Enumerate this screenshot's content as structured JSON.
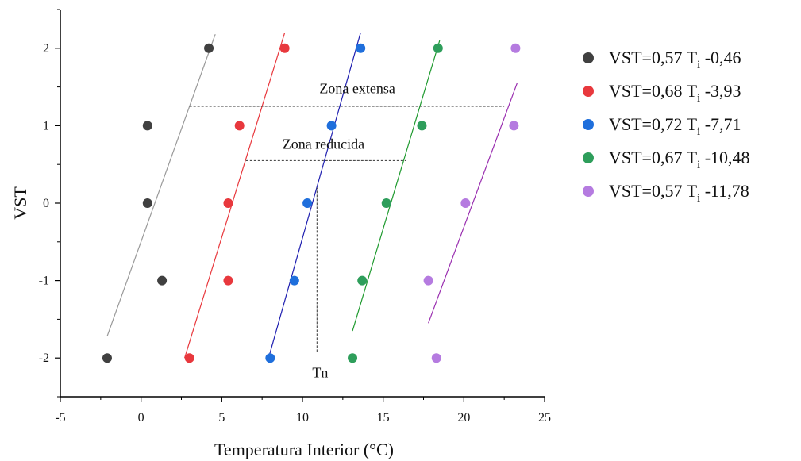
{
  "chart_data": {
    "type": "scatter",
    "xlabel": "Temperatura Interior (°C)",
    "ylabel": "VST",
    "xlim": [
      -5,
      25
    ],
    "ylim": [
      -2.5,
      2.5
    ],
    "xticks": [
      -5,
      0,
      5,
      10,
      15,
      20,
      25
    ],
    "yticks": [
      -2,
      -1,
      0,
      1,
      2
    ],
    "grid": false,
    "legend_position": "right",
    "series": [
      {
        "name": "VST=0,57 Ti -0,46",
        "legend_main": "VST=0,57 T",
        "legend_sub": "i",
        "legend_tail": " -0,46",
        "color": "#404040",
        "line_color": "#9a9a9a",
        "points": [
          [
            4.2,
            2
          ],
          [
            0.4,
            1
          ],
          [
            0.4,
            0
          ],
          [
            1.3,
            -1
          ],
          [
            -2.1,
            -2
          ]
        ],
        "fit": [
          [
            -2.1,
            -1.72
          ],
          [
            4.6,
            2.18
          ]
        ]
      },
      {
        "name": "VST=0,68 Ti -3,93",
        "legend_main": "VST=0,68 T",
        "legend_sub": "i",
        "legend_tail": " -3,93",
        "color": "#e8383d",
        "line_color": "#e8383d",
        "points": [
          [
            8.9,
            2
          ],
          [
            6.1,
            1
          ],
          [
            5.4,
            0
          ],
          [
            5.4,
            -1
          ],
          [
            3.0,
            -2
          ]
        ],
        "fit": [
          [
            2.7,
            -2.0
          ],
          [
            8.9,
            2.2
          ]
        ]
      },
      {
        "name": "VST=0,72 Ti -7,71",
        "legend_main": "VST=0,72 T",
        "legend_sub": "i",
        "legend_tail": " -7,71",
        "color": "#1f6fdc",
        "line_color": "#1f1fb0",
        "points": [
          [
            13.6,
            2
          ],
          [
            11.8,
            1
          ],
          [
            10.3,
            0
          ],
          [
            9.5,
            -1
          ],
          [
            8.0,
            -2
          ]
        ],
        "fit": [
          [
            7.9,
            -2.0
          ],
          [
            13.6,
            2.2
          ]
        ]
      },
      {
        "name": "VST=0,67 Ti -10,48",
        "legend_main": "VST=0,67 T",
        "legend_sub": "i",
        "legend_tail": " -10,48",
        "color": "#2e9e5b",
        "line_color": "#1f9a2f",
        "points": [
          [
            18.4,
            2
          ],
          [
            17.4,
            1
          ],
          [
            15.2,
            0
          ],
          [
            13.7,
            -1
          ],
          [
            13.1,
            -2
          ]
        ],
        "fit": [
          [
            13.1,
            -1.65
          ],
          [
            18.5,
            2.1
          ]
        ]
      },
      {
        "name": "VST=0,57 Ti -11,78",
        "legend_main": " VST=0,57 T",
        "legend_sub": "i",
        "legend_tail": " -11,78",
        "color": "#b57be0",
        "line_color": "#9a2fb0",
        "points": [
          [
            23.2,
            2
          ],
          [
            23.1,
            1
          ],
          [
            20.1,
            0
          ],
          [
            17.8,
            -1
          ],
          [
            18.3,
            -2
          ]
        ],
        "fit": [
          [
            17.8,
            -1.55
          ],
          [
            23.3,
            1.55
          ]
        ]
      }
    ],
    "annotations": [
      {
        "text": "Zona extensa",
        "x": 13.4,
        "y": 1.42,
        "range": [
          3.0,
          22.5
        ],
        "y_line": 1.25
      },
      {
        "text": "Zona reducida",
        "x": 11.3,
        "y": 0.7,
        "range": [
          6.5,
          16.4
        ],
        "y_line": 0.55
      },
      {
        "text": "Tn",
        "x": 11.1,
        "y": -2.25,
        "x_line": 10.9,
        "y_range": [
          -1.92,
          0.2
        ]
      }
    ]
  }
}
